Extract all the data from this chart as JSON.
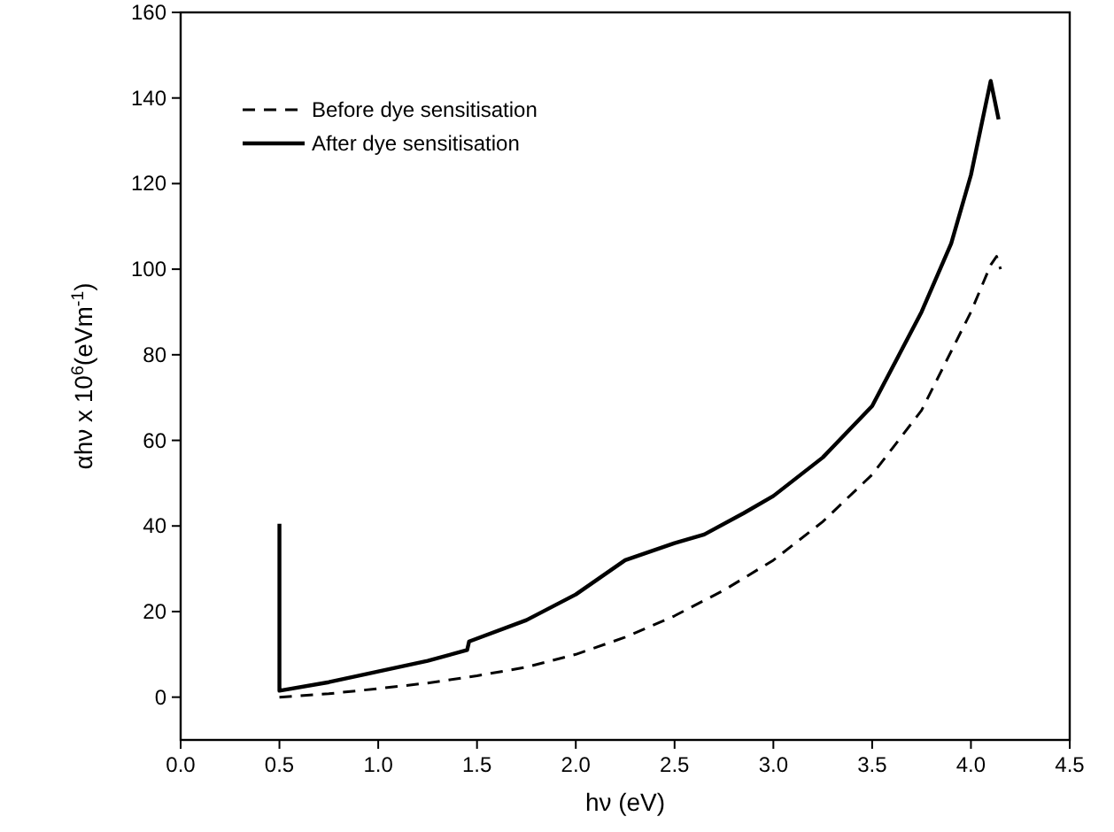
{
  "chart_data": {
    "type": "line",
    "xlabel": "hν (eV)",
    "ylabel": "αhν x 10$^{6}$(eVm$^{-1}$)",
    "xlim": [
      0,
      4.5
    ],
    "ylim": [
      -10,
      160
    ],
    "xticks": [
      {
        "value": 0,
        "label": "0.0"
      },
      {
        "value": 0.5,
        "label": "0.5"
      },
      {
        "value": 1,
        "label": "1.0"
      },
      {
        "value": 1.5,
        "label": "1.5"
      },
      {
        "value": 2,
        "label": "2.0"
      },
      {
        "value": 2.5,
        "label": "2.5"
      },
      {
        "value": 3,
        "label": "3.0"
      },
      {
        "value": 3.5,
        "label": "3.5"
      },
      {
        "value": 4,
        "label": "4.0"
      },
      {
        "value": 4.5,
        "label": "4.5"
      }
    ],
    "yticks": [
      0,
      20,
      40,
      60,
      80,
      100,
      120,
      140,
      160
    ],
    "legend": "top left",
    "grid": false,
    "marker": "none",
    "series": [
      {
        "name": "Before dye sensitisation",
        "color": "#000000",
        "line_style": "dashed",
        "x": [
          0.5,
          0.75,
          1.0,
          1.25,
          1.5,
          1.75,
          2.0,
          2.25,
          2.5,
          2.75,
          3.0,
          3.25,
          3.5,
          3.75,
          4.0,
          4.1,
          4.13,
          4.15
        ],
        "values": [
          0,
          0.8,
          2,
          3.3,
          5,
          7,
          10,
          14,
          19,
          25,
          32,
          41,
          52,
          67,
          90,
          101,
          103,
          100
        ]
      },
      {
        "name": "After dye sensitisation",
        "color": "#000000",
        "line_style": "solid",
        "x": [
          0.5,
          0.5,
          0.75,
          1.0,
          1.25,
          1.45,
          1.46,
          1.75,
          2.0,
          2.25,
          2.5,
          2.65,
          2.85,
          3.0,
          3.25,
          3.5,
          3.75,
          3.9,
          4.0,
          4.1,
          4.14
        ],
        "values": [
          40.5,
          1.5,
          3.5,
          6,
          8.5,
          11,
          13,
          18,
          24,
          32,
          36,
          38,
          43,
          47,
          56,
          68,
          90,
          106,
          122,
          144,
          135
        ]
      }
    ]
  }
}
